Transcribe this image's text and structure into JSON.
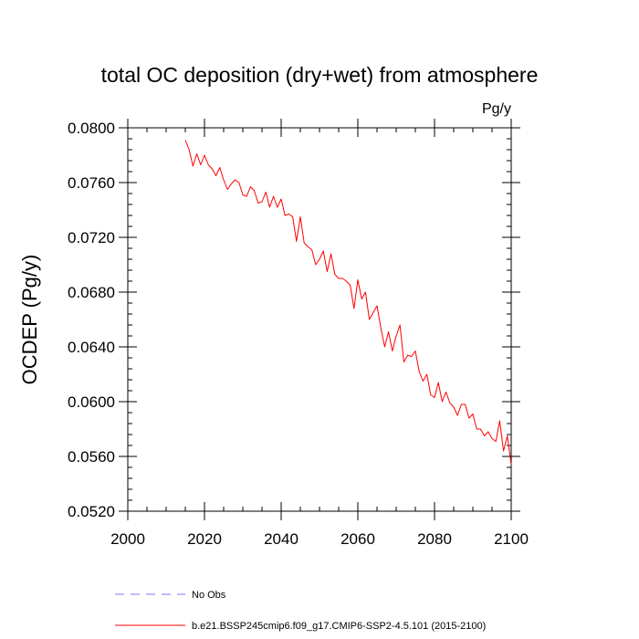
{
  "chart_data": {
    "type": "line",
    "title": "total OC deposition (dry+wet) from atmosphere",
    "units_label": "Pg/y",
    "ylabel": "OCDEP  (Pg/y)",
    "xlabel": "",
    "xlim": [
      2000,
      2100
    ],
    "ylim": [
      0.052,
      0.08
    ],
    "x_ticks": [
      2000,
      2020,
      2040,
      2060,
      2080,
      2100
    ],
    "x_tick_labels": [
      "2000",
      "2020",
      "2040",
      "2060",
      "2080",
      "2100"
    ],
    "y_ticks": [
      0.052,
      0.056,
      0.06,
      0.064,
      0.068,
      0.072,
      0.076,
      0.08
    ],
    "y_tick_labels": [
      "0.0520",
      "0.0560",
      "0.0600",
      "0.0640",
      "0.0680",
      "0.0720",
      "0.0760",
      "0.0800"
    ],
    "grid": false,
    "legend_position": "bottom",
    "series": [
      {
        "name": "b.e21.BSSP245cmip6.f09_g17.CMIP6-SSP2-4.5.101 (2015-2100)",
        "color": "#ff0000",
        "style": "solid",
        "x": [
          2015,
          2016,
          2017,
          2018,
          2019,
          2020,
          2021,
          2022,
          2023,
          2024,
          2025,
          2026,
          2027,
          2028,
          2029,
          2030,
          2031,
          2032,
          2033,
          2034,
          2035,
          2036,
          2037,
          2038,
          2039,
          2040,
          2041,
          2042,
          2043,
          2044,
          2045,
          2046,
          2047,
          2048,
          2049,
          2050,
          2051,
          2052,
          2053,
          2054,
          2055,
          2056,
          2057,
          2058,
          2059,
          2060,
          2061,
          2062,
          2063,
          2064,
          2065,
          2066,
          2067,
          2068,
          2069,
          2070,
          2071,
          2072,
          2073,
          2074,
          2075,
          2076,
          2077,
          2078,
          2079,
          2080,
          2081,
          2082,
          2083,
          2084,
          2085,
          2086,
          2087,
          2088,
          2089,
          2090,
          2091,
          2092,
          2093,
          2094,
          2095,
          2096,
          2097,
          2098,
          2099,
          2100
        ],
        "values": [
          0.0791,
          0.0784,
          0.0772,
          0.0781,
          0.0773,
          0.078,
          0.0773,
          0.077,
          0.0765,
          0.0771,
          0.0762,
          0.0755,
          0.0759,
          0.0762,
          0.076,
          0.0751,
          0.075,
          0.0757,
          0.0754,
          0.0745,
          0.0746,
          0.0753,
          0.0742,
          0.075,
          0.0742,
          0.0748,
          0.0736,
          0.0737,
          0.0735,
          0.0717,
          0.0735,
          0.0716,
          0.0713,
          0.0711,
          0.07,
          0.0704,
          0.071,
          0.0695,
          0.0708,
          0.0693,
          0.069,
          0.069,
          0.0688,
          0.0685,
          0.0668,
          0.0689,
          0.0675,
          0.068,
          0.066,
          0.0665,
          0.067,
          0.0654,
          0.064,
          0.0651,
          0.0637,
          0.0648,
          0.0656,
          0.0629,
          0.0634,
          0.0633,
          0.0637,
          0.0622,
          0.0615,
          0.062,
          0.0605,
          0.0603,
          0.0614,
          0.06,
          0.0607,
          0.0599,
          0.0596,
          0.059,
          0.0598,
          0.0598,
          0.0588,
          0.0591,
          0.058,
          0.058,
          0.0575,
          0.0578,
          0.0573,
          0.0571,
          0.0586,
          0.0564,
          0.0575,
          0.0554
        ]
      }
    ],
    "legend": [
      {
        "label": "No Obs",
        "color": "#7777ff",
        "style": "dashed"
      },
      {
        "label": "b.e21.BSSP245cmip6.f09_g17.CMIP6-SSP2-4.5.101 (2015-2100)",
        "color": "#ff0000",
        "style": "solid"
      }
    ]
  }
}
